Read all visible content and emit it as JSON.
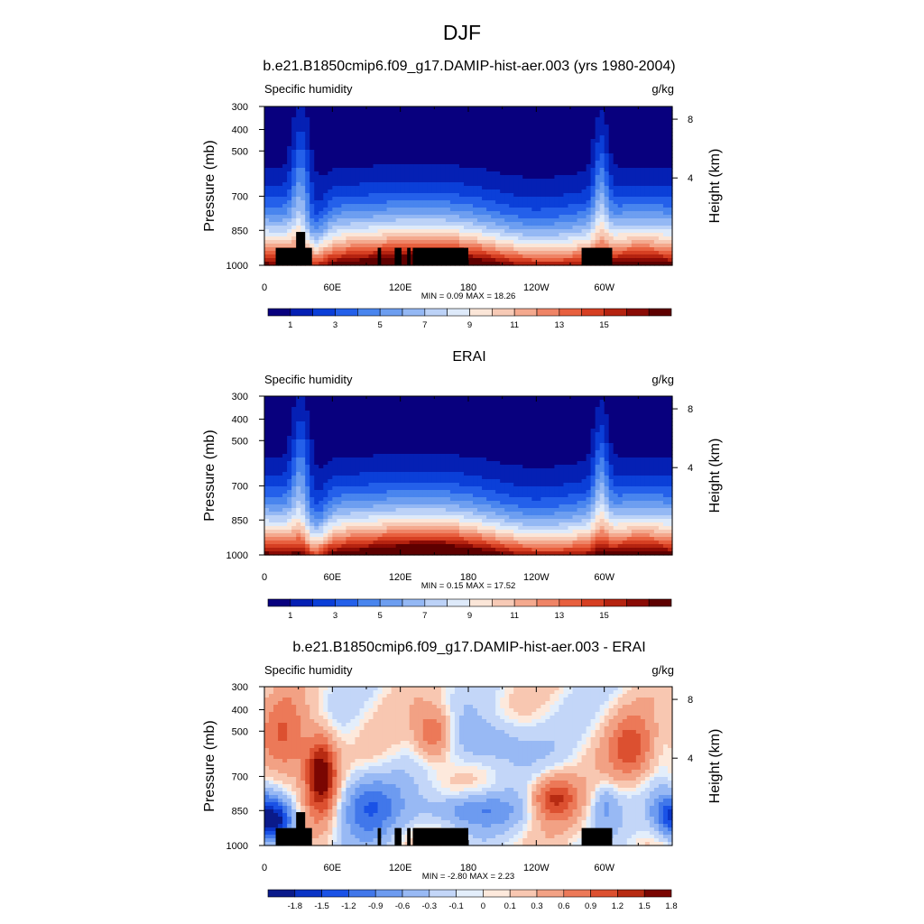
{
  "figure": {
    "title": "DJF",
    "panel_titles": [
      "b.e21.B1850cmip6.f09_g17.DAMIP-hist-aer.003 (yrs 1980-2004)",
      "ERAI",
      "b.e21.B1850cmip6.f09_g17.DAMIP-hist-aer.003 - ERAI"
    ],
    "variable_label": "Specific humidity",
    "units_label": "g/kg",
    "ylabel": "Pressure (mb)",
    "ylabel_right": "Height (km)"
  },
  "colors": {
    "sequential": [
      "#08007e",
      "#0520b4",
      "#0b3fd8",
      "#2460ea",
      "#4985ee",
      "#6d9ef0",
      "#94b8f4",
      "#bcd2f7",
      "#deeafa",
      "#fbe6d8",
      "#f7cab6",
      "#f4a98e",
      "#ef8466",
      "#e8603f",
      "#d63f22",
      "#b52310",
      "#8a0b05",
      "#5e0000"
    ],
    "diverging": [
      "#0a1a8a",
      "#0a34c6",
      "#1a52e6",
      "#4177ea",
      "#6d9bf0",
      "#98b9f4",
      "#c3d6f8",
      "#e3eefb",
      "#fde9dc",
      "#f8c7b1",
      "#f2a184",
      "#ec7958",
      "#dc5030",
      "#b72b12",
      "#7a0602"
    ],
    "land_mask": "#000000"
  },
  "chart_data": [
    {
      "type": "heatmap",
      "title": "b.e21.B1850cmip6.f09_g17.DAMIP-hist-aer.003 (yrs 1980-2004)",
      "variable": "Specific humidity",
      "units": "g/kg",
      "x_ticklabels": [
        "0",
        "60E",
        "120E",
        "180",
        "120W",
        "60W"
      ],
      "x_tick_lon": [
        0,
        60,
        120,
        180,
        240,
        300
      ],
      "xlim": [
        0,
        360
      ],
      "y_ticklabels": [
        "300",
        "400",
        "500",
        "700",
        "850",
        "1000"
      ],
      "y_tick_p": [
        300,
        400,
        500,
        700,
        850,
        1000
      ],
      "ylim": [
        300,
        1000
      ],
      "y2_ticklabels": [
        "8",
        "4"
      ],
      "y2_tick_km": [
        8,
        4
      ],
      "ylabel": "Pressure (mb)",
      "ylabel_right": "Height (km)",
      "stats_text": "MIN =   0.09  MAX =  18.26",
      "min": 0.09,
      "max": 18.26,
      "colorbar_labels": [
        "1",
        "3",
        "5",
        "7",
        "9",
        "11",
        "13",
        "15"
      ],
      "levels": [
        1,
        2,
        3,
        4,
        5,
        6,
        7,
        8,
        9,
        10,
        11,
        12,
        13,
        14,
        15,
        16,
        17
      ],
      "field": "model",
      "masked_topography": true
    },
    {
      "type": "heatmap",
      "title": "ERAI",
      "variable": "Specific humidity",
      "units": "g/kg",
      "x_ticklabels": [
        "0",
        "60E",
        "120E",
        "180",
        "120W",
        "60W"
      ],
      "x_tick_lon": [
        0,
        60,
        120,
        180,
        240,
        300
      ],
      "xlim": [
        0,
        360
      ],
      "y_ticklabels": [
        "300",
        "400",
        "500",
        "700",
        "850",
        "1000"
      ],
      "y_tick_p": [
        300,
        400,
        500,
        700,
        850,
        1000
      ],
      "ylim": [
        300,
        1000
      ],
      "y2_ticklabels": [
        "8",
        "4"
      ],
      "y2_tick_km": [
        8,
        4
      ],
      "ylabel": "Pressure (mb)",
      "ylabel_right": "Height (km)",
      "stats_text": "MIN =   0.15  MAX =  17.52",
      "min": 0.15,
      "max": 17.52,
      "colorbar_labels": [
        "1",
        "3",
        "5",
        "7",
        "9",
        "11",
        "13",
        "15"
      ],
      "levels": [
        1,
        2,
        3,
        4,
        5,
        6,
        7,
        8,
        9,
        10,
        11,
        12,
        13,
        14,
        15,
        16,
        17
      ],
      "field": "obs",
      "masked_topography": false
    },
    {
      "type": "heatmap",
      "title": "b.e21.B1850cmip6.f09_g17.DAMIP-hist-aer.003 - ERAI",
      "variable": "Specific humidity",
      "units": "g/kg",
      "x_ticklabels": [
        "0",
        "60E",
        "120E",
        "180",
        "120W",
        "60W"
      ],
      "x_tick_lon": [
        0,
        60,
        120,
        180,
        240,
        300
      ],
      "xlim": [
        0,
        360
      ],
      "y_ticklabels": [
        "300",
        "400",
        "500",
        "700",
        "850",
        "1000"
      ],
      "y_tick_p": [
        300,
        400,
        500,
        700,
        850,
        1000
      ],
      "ylim": [
        300,
        1000
      ],
      "y2_ticklabels": [
        "8",
        "4"
      ],
      "y2_tick_km": [
        8,
        4
      ],
      "ylabel": "Pressure (mb)",
      "ylabel_right": "Height (km)",
      "stats_text": "MIN =  -2.80  MAX =   2.23",
      "min": -2.8,
      "max": 2.23,
      "colorbar_labels": [
        "-1.8",
        "-1.5",
        "-1.2",
        "-0.9",
        "-0.6",
        "-0.3",
        "-0.1",
        "0",
        "0.1",
        "0.3",
        "0.6",
        "0.9",
        "1.2",
        "1.5",
        "1.8"
      ],
      "levels": [
        -1.8,
        -1.5,
        -1.2,
        -0.9,
        -0.6,
        -0.3,
        -0.1,
        0,
        0.1,
        0.3,
        0.6,
        0.9,
        1.2,
        1.5,
        1.8
      ],
      "field": "diff",
      "masked_topography": true
    }
  ]
}
